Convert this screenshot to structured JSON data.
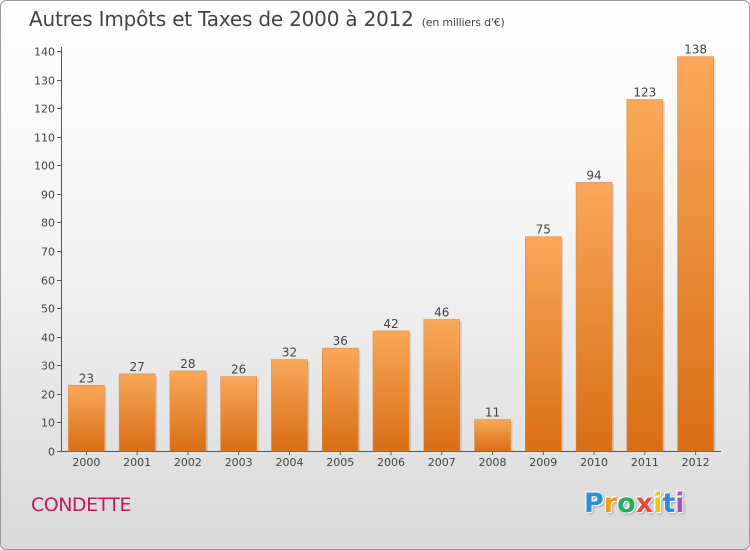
{
  "title": "Autres Impôts et Taxes de 2000 à 2012",
  "subtitle": "(en milliers d'€)",
  "commune": "CONDETTE",
  "logo": {
    "letters": [
      "P",
      "r",
      "o",
      "x",
      "i",
      "t",
      "i"
    ],
    "colors": [
      "#2a8fd6",
      "#f39c12",
      "#27ae60",
      "#e74c3c",
      "#f1c40f",
      "#2a8fd6",
      "#9b59b6"
    ]
  },
  "colors": {
    "bar_light": "#f9a85a",
    "bar_dark": "#d86e14",
    "title": "#444444",
    "commune": "#c2185b"
  },
  "chart_data": {
    "type": "bar",
    "categories": [
      "2000",
      "2001",
      "2002",
      "2003",
      "2004",
      "2005",
      "2006",
      "2007",
      "2008",
      "2009",
      "2010",
      "2011",
      "2012"
    ],
    "values": [
      23,
      27,
      28,
      26,
      32,
      36,
      42,
      46,
      11,
      75,
      94,
      123,
      138
    ],
    "ylim": [
      0,
      140
    ],
    "yticks": [
      0,
      10,
      20,
      30,
      40,
      50,
      60,
      70,
      80,
      90,
      100,
      110,
      120,
      130,
      140
    ],
    "grid": false,
    "data_labels": true
  }
}
